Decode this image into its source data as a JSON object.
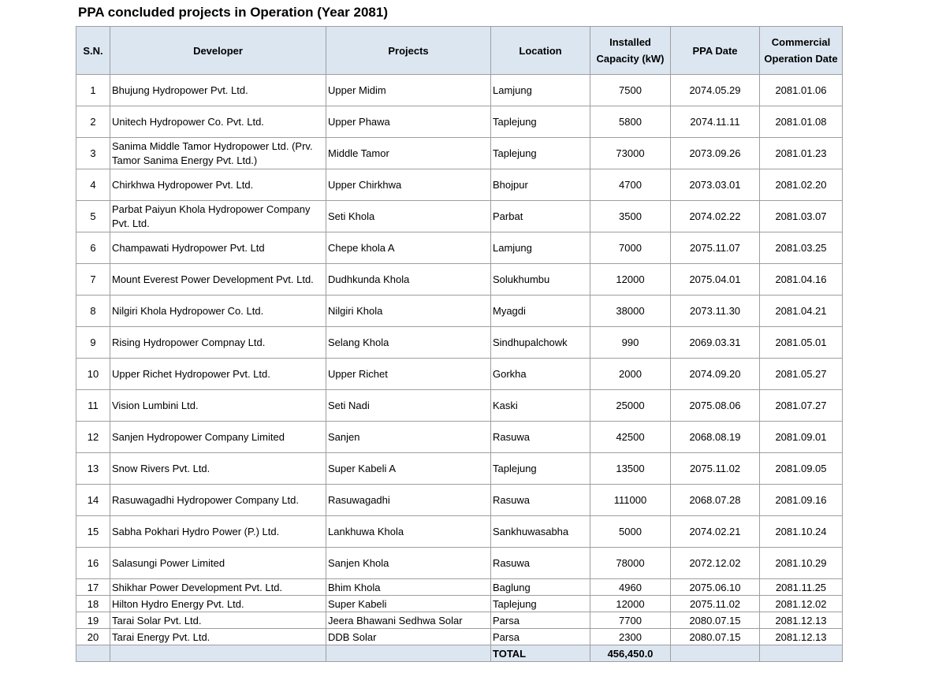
{
  "title": "PPA concluded projects in Operation (Year 2081)",
  "columns": [
    "S.N.",
    "Developer",
    "Projects",
    "Location",
    "Installed Capacity (kW)",
    "PPA Date",
    "Commercial Operation Date"
  ],
  "rows": [
    {
      "sn": "1",
      "developer": "Bhujung Hydropower Pvt. Ltd.",
      "project": "Upper Midim",
      "location": "Lamjung",
      "capacity": "7500",
      "ppa_date": "2074.05.29",
      "cod": "2081.01.06"
    },
    {
      "sn": "2",
      "developer": "Unitech Hydropower Co. Pvt. Ltd.",
      "project": "Upper Phawa",
      "location": "Taplejung",
      "capacity": "5800",
      "ppa_date": "2074.11.11",
      "cod": "2081.01.08"
    },
    {
      "sn": "3",
      "developer": "Sanima Middle Tamor Hydropower Ltd. (Prv. Tamor Sanima Energy Pvt. Ltd.)",
      "project": "Middle Tamor",
      "location": "Taplejung",
      "capacity": "73000",
      "ppa_date": "2073.09.26",
      "cod": "2081.01.23"
    },
    {
      "sn": "4",
      "developer": "Chirkhwa Hydropower Pvt. Ltd.",
      "project": "Upper Chirkhwa",
      "location": "Bhojpur",
      "capacity": "4700",
      "ppa_date": "2073.03.01",
      "cod": "2081.02.20"
    },
    {
      "sn": "5",
      "developer": "Parbat Paiyun Khola Hydropower Company Pvt. Ltd.",
      "project": "Seti Khola",
      "location": "Parbat",
      "capacity": "3500",
      "ppa_date": "2074.02.22",
      "cod": "2081.03.07"
    },
    {
      "sn": "6",
      "developer": "Champawati Hydropower Pvt. Ltd",
      "project": "Chepe khola A",
      "location": "Lamjung",
      "capacity": "7000",
      "ppa_date": "2075.11.07",
      "cod": "2081.03.25"
    },
    {
      "sn": "7",
      "developer": "Mount Everest Power Development Pvt. Ltd.",
      "project": "Dudhkunda Khola",
      "location": "Solukhumbu",
      "capacity": "12000",
      "ppa_date": "2075.04.01",
      "cod": "2081.04.16"
    },
    {
      "sn": "8",
      "developer": "Nilgiri Khola Hydropower Co. Ltd.",
      "project": "Nilgiri Khola",
      "location": "Myagdi",
      "capacity": "38000",
      "ppa_date": "2073.11.30",
      "cod": "2081.04.21"
    },
    {
      "sn": "9",
      "developer": "Rising Hydropower Compnay Ltd.",
      "project": "Selang Khola",
      "location": "Sindhupalchowk",
      "capacity": "990",
      "ppa_date": "2069.03.31",
      "cod": "2081.05.01"
    },
    {
      "sn": "10",
      "developer": "Upper Richet Hydropower Pvt. Ltd.",
      "project": "Upper Richet",
      "location": "Gorkha",
      "capacity": "2000",
      "ppa_date": "2074.09.20",
      "cod": "2081.05.27"
    },
    {
      "sn": "11",
      "developer": "Vision Lumbini Ltd.",
      "project": "Seti Nadi",
      "location": "Kaski",
      "capacity": "25000",
      "ppa_date": "2075.08.06",
      "cod": "2081.07.27"
    },
    {
      "sn": "12",
      "developer": "Sanjen Hydropower Company Limited",
      "project": "Sanjen",
      "location": "Rasuwa",
      "capacity": "42500",
      "ppa_date": "2068.08.19",
      "cod": "2081.09.01"
    },
    {
      "sn": "13",
      "developer": "Snow Rivers Pvt. Ltd.",
      "project": "Super Kabeli A",
      "location": "Taplejung",
      "capacity": "13500",
      "ppa_date": "2075.11.02",
      "cod": "2081.09.05"
    },
    {
      "sn": "14",
      "developer": "Rasuwagadhi Hydropower Company Ltd.",
      "project": "Rasuwagadhi",
      "location": "Rasuwa",
      "capacity": "111000",
      "ppa_date": "2068.07.28",
      "cod": "2081.09.16"
    },
    {
      "sn": "15",
      "developer": "Sabha Pokhari Hydro Power (P.) Ltd.",
      "project": "Lankhuwa Khola",
      "location": "Sankhuwasabha",
      "capacity": "5000",
      "ppa_date": "2074.02.21",
      "cod": "2081.10.24"
    },
    {
      "sn": "16",
      "developer": "Salasungi Power Limited",
      "project": "Sanjen Khola",
      "location": "Rasuwa",
      "capacity": "78000",
      "ppa_date": "2072.12.02",
      "cod": "2081.10.29"
    },
    {
      "sn": "17",
      "developer": "Shikhar Power Development Pvt. Ltd.",
      "project": "Bhim Khola",
      "location": "Baglung",
      "capacity": "4960",
      "ppa_date": "2075.06.10",
      "cod": "2081.11.25"
    },
    {
      "sn": "18",
      "developer": "Hilton Hydro Energy Pvt. Ltd.",
      "project": "Super Kabeli",
      "location": "Taplejung",
      "capacity": "12000",
      "ppa_date": "2075.11.02",
      "cod": "2081.12.02"
    },
    {
      "sn": "19",
      "developer": "Tarai Solar Pvt. Ltd.",
      "project": "Jeera Bhawani Sedhwa Solar",
      "location": "Parsa",
      "capacity": "7700",
      "ppa_date": "2080.07.15",
      "cod": "2081.12.13"
    },
    {
      "sn": "20",
      "developer": "Tarai Energy Pvt. Ltd.",
      "project": "DDB Solar",
      "location": "Parsa",
      "capacity": "2300",
      "ppa_date": "2080.07.15",
      "cod": "2081.12.13"
    }
  ],
  "total": {
    "label": "TOTAL",
    "capacity": "456,450.0"
  }
}
